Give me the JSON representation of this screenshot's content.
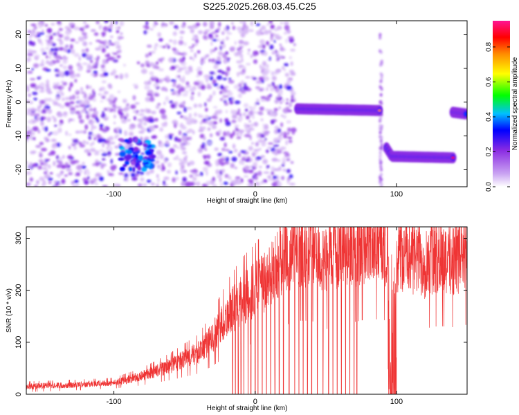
{
  "title": "S225.2025.268.03.45.C25",
  "chart_data": [
    {
      "type": "heatmap",
      "xlabel": "Height of straight line (km)",
      "ylabel": "Frequency (Hz)",
      "xlim": [
        -162,
        150
      ],
      "ylim": [
        -25,
        24
      ],
      "x_ticks": [
        -100,
        0,
        100
      ],
      "x_tick_labels": [
        "-100",
        "0",
        "100"
      ],
      "y_ticks": [
        -20,
        -10,
        0,
        10,
        20
      ],
      "y_tick_labels": [
        "-20",
        "-10",
        "0",
        "10",
        "20"
      ],
      "colorbar": {
        "label": "Normalized spectral amplitude",
        "range": [
          0,
          0.95
        ],
        "ticks": [
          0,
          0.2,
          0.4,
          0.6,
          0.8
        ],
        "tick_labels": [
          "0.0",
          "0.2",
          "0.4",
          "0.6",
          "0.8"
        ],
        "colors": [
          "#ffffff",
          "#c9a2f2",
          "#8a2be2",
          "#0000ff",
          "#00bfff",
          "#00ff00",
          "#ffff00",
          "#ff8c00",
          "#ff0000",
          "#ff1493"
        ]
      },
      "noise_region": {
        "x": [
          -162,
          28
        ],
        "y": [
          -25,
          24
        ],
        "level": 0.15
      },
      "gap_region": {
        "x": [
          -94,
          -78
        ],
        "y": [
          0,
          24
        ]
      },
      "tracks": [
        {
          "x": [
            -95,
            -72
          ],
          "y": [
            -20,
            -11
          ],
          "peak": 0.45
        },
        {
          "x": [
            30,
            88
          ],
          "y": [
            -3,
            -2
          ],
          "peak": 0.8
        },
        {
          "x": [
            93,
            140
          ],
          "y": [
            -19,
            -16
          ],
          "peak": 0.9
        },
        {
          "x": [
            140,
            149
          ],
          "y": [
            -4,
            -3
          ],
          "peak": 0.5
        }
      ],
      "noise_streak": {
        "x": 89,
        "y": [
          -25,
          24
        ]
      }
    },
    {
      "type": "line",
      "xlabel": "Height of straight line (km)",
      "ylabel": "SNR (10 * v/v)",
      "xlim": [
        -162,
        150
      ],
      "ylim": [
        0,
        322
      ],
      "x_ticks": [
        -100,
        0,
        100
      ],
      "x_tick_labels": [
        "-100",
        "0",
        "100"
      ],
      "y_ticks": [
        0,
        100,
        200,
        300
      ],
      "y_tick_labels": [
        "0",
        "100",
        "200",
        "300"
      ],
      "color": "#ef3434",
      "trend": {
        "x": [
          -162,
          -130,
          -100,
          -80,
          -60,
          -40,
          -30,
          -20,
          -10,
          0,
          10,
          20,
          30,
          40,
          50,
          60,
          70,
          80,
          90,
          95,
          100,
          110,
          120,
          130,
          140,
          150
        ],
        "y": [
          15,
          18,
          22,
          35,
          55,
          80,
          110,
          150,
          180,
          200,
          225,
          265,
          285,
          285,
          250,
          290,
          280,
          292,
          290,
          280,
          270,
          265,
          255,
          265,
          260,
          270
        ]
      },
      "dropouts_to_zero": [
        -16,
        -14,
        -12,
        -10,
        -8,
        -5,
        -3,
        0,
        2,
        5,
        8,
        11,
        14,
        17,
        20,
        24,
        28,
        31,
        34,
        37,
        40,
        44,
        48,
        52,
        55,
        58,
        61,
        64,
        67,
        70,
        72
      ],
      "zero_band": {
        "x": [
          94,
          100
        ]
      }
    }
  ]
}
